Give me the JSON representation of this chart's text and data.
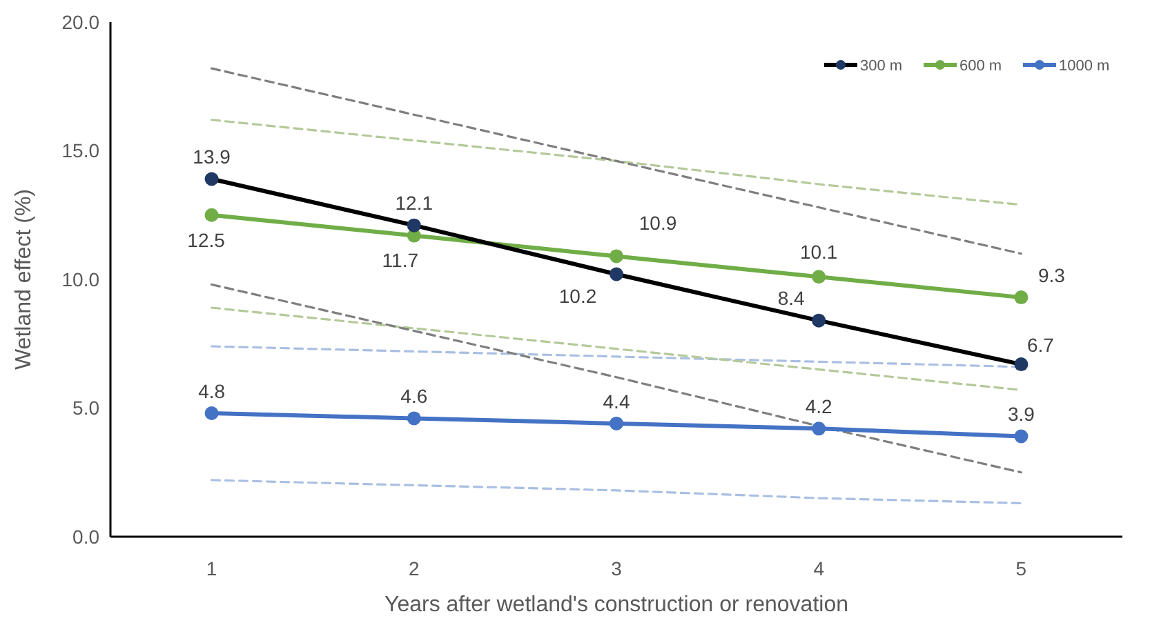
{
  "chart_data": {
    "type": "line",
    "xlabel": "Years after wetland's construction or renovation",
    "ylabel": "Wetland effect (%)",
    "categories": [
      "1",
      "2",
      "3",
      "4",
      "5"
    ],
    "ylim": [
      0,
      20
    ],
    "yticks": [
      {
        "value": 0,
        "label": "0.0"
      },
      {
        "value": 5,
        "label": "5.0"
      },
      {
        "value": 10,
        "label": "10.0"
      },
      {
        "value": 15,
        "label": "15.0"
      },
      {
        "value": 20,
        "label": "20.0"
      }
    ],
    "grid": false,
    "legend": "top right",
    "marker": "circle",
    "line_style": "solid",
    "series": [
      {
        "name": "300 m",
        "color": "#000000",
        "values": [
          13.9,
          12.1,
          10.2,
          8.4,
          6.7
        ],
        "value_labels": [
          "13.9",
          "12.1",
          "10.2",
          "8.4",
          "6.7"
        ]
      },
      {
        "name": "600 m",
        "color": "#70ad47",
        "values": [
          12.5,
          11.7,
          10.9,
          10.1,
          9.3
        ],
        "value_labels": [
          "12.5",
          "11.7",
          "10.9",
          "10.1",
          "9.3"
        ]
      },
      {
        "name": "1000 m",
        "color": "#4472c4",
        "values": [
          4.8,
          4.6,
          4.4,
          4.2,
          3.9
        ],
        "value_labels": [
          "4.8",
          "4.6",
          "4.4",
          "4.2",
          "3.9"
        ]
      },
      {
        "color": "#7f7f7f",
        "line_style": "dashed",
        "marker": "none",
        "values": [
          18.2,
          16.4,
          14.6,
          12.8,
          11.0
        ]
      },
      {
        "color": "#7f7f7f",
        "line_style": "dashed",
        "marker": "none",
        "values": [
          9.8,
          8.0,
          6.2,
          4.3,
          2.5
        ]
      },
      {
        "color": "#b4c99a",
        "line_style": "dashed",
        "marker": "none",
        "values": [
          16.2,
          15.4,
          14.6,
          13.7,
          12.9
        ]
      },
      {
        "color": "#b4c99a",
        "line_style": "dashed",
        "marker": "none",
        "values": [
          8.9,
          8.1,
          7.3,
          6.5,
          5.7
        ]
      },
      {
        "color": "#a9bfe3",
        "line_style": "dashed",
        "marker": "none",
        "values": [
          7.4,
          7.2,
          7.0,
          6.8,
          6.6
        ]
      },
      {
        "color": "#a9bfe3",
        "line_style": "dashed",
        "marker": "none",
        "values": [
          2.2,
          2.0,
          1.8,
          1.5,
          1.3
        ]
      }
    ]
  }
}
